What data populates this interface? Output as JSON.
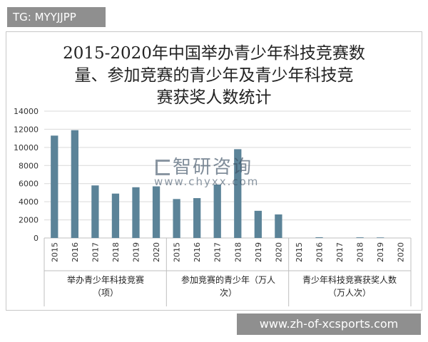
{
  "tag": "TG: MYYJJPP",
  "footer": "www.zh-of-xcsports.com",
  "watermark": {
    "brand": "智研咨询",
    "url": "www.chyxx.com"
  },
  "chart_data": {
    "type": "bar",
    "title": "2015-2020年中国举办青少年科技竞赛数量、参加竞赛的青少年及青少年科技竞赛获奖人数统计",
    "title_lines": [
      "2015-2020年中国举办青少年科技竞赛数",
      "量、参加竞赛的青少年及青少年科技竞",
      "赛获奖人数统计"
    ],
    "ylim": [
      0,
      14000
    ],
    "yticks": [
      "14000",
      "12000",
      "10000",
      "8000",
      "6000",
      "4000",
      "2000",
      "0"
    ],
    "grid": true,
    "bar_color": "#5b8398",
    "groups": [
      {
        "label_lines": [
          "举办青少年科技竞赛",
          "（项）"
        ],
        "categories": [
          "2015",
          "2016",
          "2017",
          "2018",
          "2019",
          "2020"
        ],
        "values": [
          11300,
          11900,
          5800,
          4900,
          5600,
          5700
        ]
      },
      {
        "label_lines": [
          "参加竞赛的青少年（万人",
          "次）"
        ],
        "categories": [
          "2015",
          "2016",
          "2017",
          "2018",
          "2019",
          "2020"
        ],
        "values": [
          4300,
          4400,
          5900,
          9800,
          3000,
          2600
        ]
      },
      {
        "label_lines": [
          "青少年科技竞赛获奖人数",
          "（万人次）"
        ],
        "categories": [
          "2015",
          "2016",
          "2017",
          "2018",
          "2019",
          "2020"
        ],
        "values": [
          0,
          80,
          0,
          70,
          60,
          0
        ]
      }
    ]
  }
}
